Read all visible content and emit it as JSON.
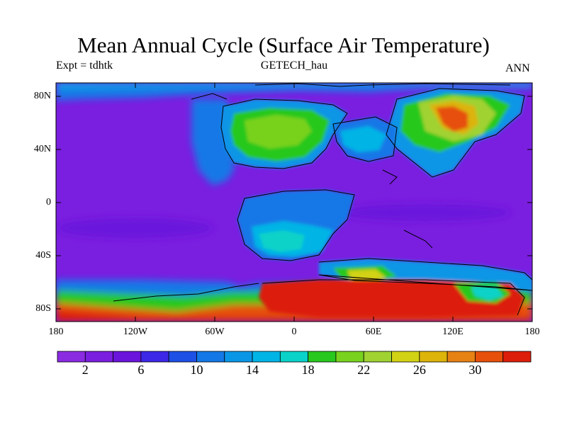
{
  "title": "Mean Annual Cycle (Surface Air Temperature)",
  "left_string": "Expt = tdhtk",
  "center_string": "GETECH_hau",
  "right_string": "ANN",
  "lat_labels": [
    "80N",
    "40N",
    "0",
    "40S",
    "80S"
  ],
  "lon_labels": [
    "180",
    "120W",
    "60W",
    "0",
    "60E",
    "120E",
    "180"
  ],
  "colorbar": {
    "labels": [
      "2",
      "6",
      "10",
      "14",
      "18",
      "22",
      "26",
      "30"
    ],
    "colors": [
      "#8a2be2",
      "#7a1ee0",
      "#6a14dc",
      "#3c28e6",
      "#1e50e6",
      "#1478e6",
      "#0a96e6",
      "#00b4e6",
      "#0ad2c8",
      "#28c81e",
      "#78d21e",
      "#a0d232",
      "#d2d214",
      "#dcb40a",
      "#e68214",
      "#e6500a",
      "#dc1e0a"
    ]
  },
  "colors": {
    "cold": "#7a1ee0",
    "cool": "#1478e6",
    "mild": "#28c81e",
    "warm": "#e6500a",
    "hot": "#dc1e0a",
    "coastline": "#000000"
  }
}
